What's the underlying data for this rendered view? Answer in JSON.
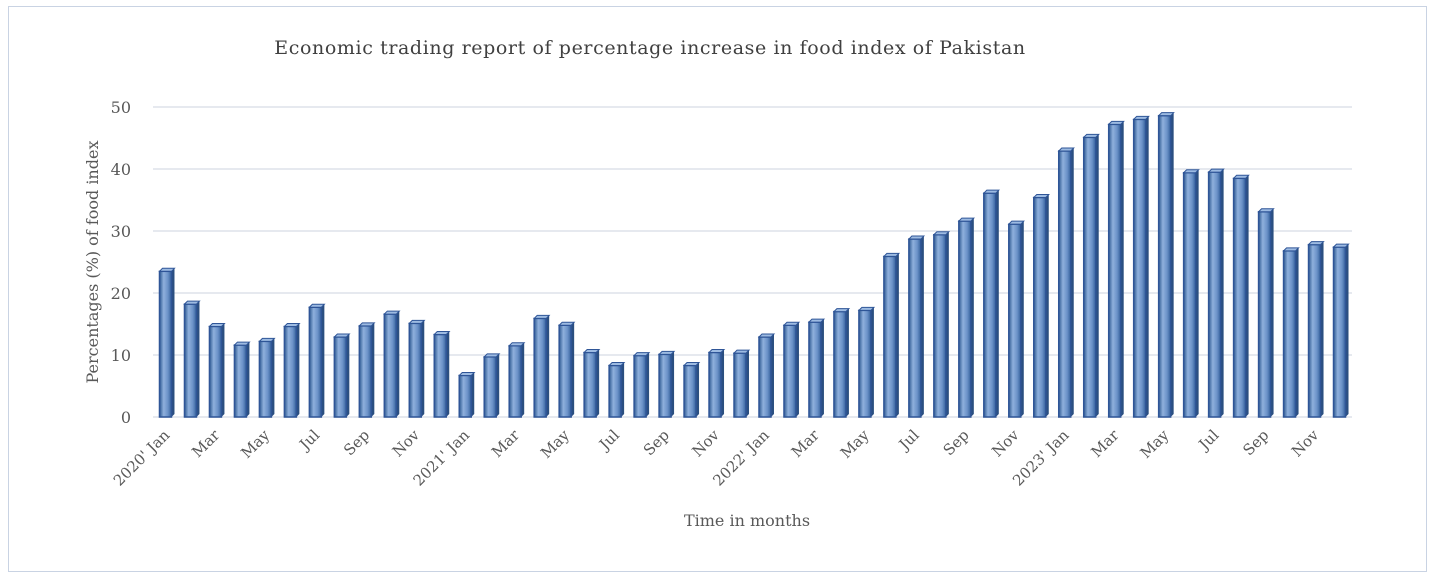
{
  "chart_data": {
    "type": "bar",
    "title": "Economic trading report of percentage increase in food index of Pakistan",
    "xlabel": "Time in months",
    "ylabel": "Percentages (%) of food index",
    "ylim": [
      0,
      50
    ],
    "yticks": [
      "0",
      "10",
      "20",
      "30",
      "40",
      "50"
    ],
    "grid": true,
    "bar_color": "#4f81bd",
    "bar_edge_color": "#2f5597",
    "xtick_labels": [
      "2020' Jan",
      "",
      "Mar",
      "",
      "May",
      "",
      "Jul",
      "",
      "Sep",
      "",
      "Nov",
      "",
      "2021' Jan",
      "",
      "Mar",
      "",
      "May",
      "",
      "Jul",
      "",
      "Sep",
      "",
      "Nov",
      "",
      "2022' Jan",
      "",
      "Mar",
      "",
      "May",
      "",
      "Jul",
      "",
      "Sep",
      "",
      "Nov",
      "",
      "2023' Jan",
      "",
      "Mar",
      "",
      "May",
      "",
      "Jul",
      "",
      "Sep",
      "",
      "Nov",
      ""
    ],
    "values": [
      23.5,
      18.2,
      14.6,
      11.6,
      12.2,
      14.6,
      17.7,
      12.9,
      14.7,
      16.6,
      15.1,
      13.3,
      6.7,
      9.7,
      11.5,
      15.9,
      14.8,
      10.4,
      8.3,
      9.9,
      10.1,
      8.3,
      10.4,
      10.3,
      12.9,
      14.8,
      15.3,
      17.0,
      17.2,
      25.9,
      28.7,
      29.4,
      31.6,
      36.1,
      31.1,
      35.4,
      42.9,
      45.1,
      47.2,
      48.0,
      48.6,
      39.4,
      39.5,
      38.5,
      33.1,
      26.8,
      27.8,
      27.4
    ]
  }
}
